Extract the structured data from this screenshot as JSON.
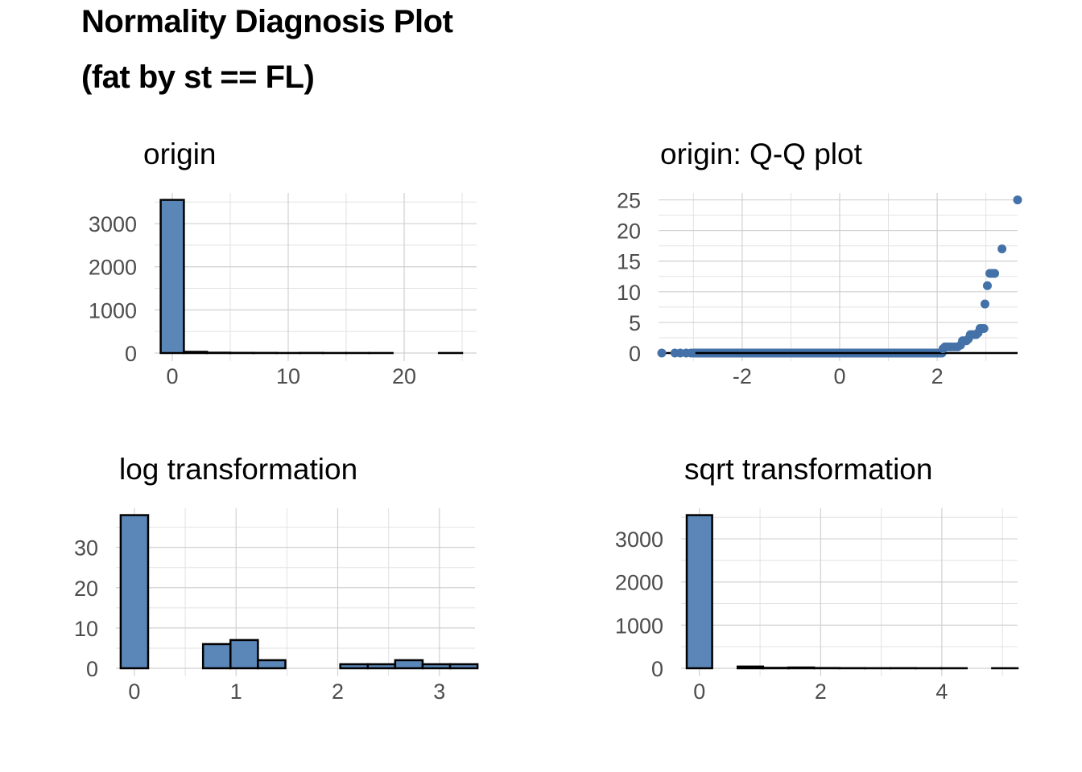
{
  "title": {
    "line1": "Normality Diagnosis Plot",
    "line2": "(fat by st == FL)"
  },
  "colors": {
    "bar_fill": "#5b86b8",
    "point": "#4472a8",
    "grid": "#d0d0d0",
    "tick_text": "#4d4d4d"
  },
  "chart_data": [
    {
      "type": "bar",
      "panel": "histogram",
      "title": "origin",
      "xlim": [
        -1.25,
        26.25
      ],
      "ylim": [
        0,
        3550
      ],
      "x_ticks": [
        0,
        10,
        20
      ],
      "y_ticks": [
        0,
        1000,
        2000,
        3000
      ],
      "bins": [
        {
          "x0": -1.0,
          "x1": 1.0,
          "count": 3550
        },
        {
          "x0": 1.0,
          "x1": 3.0,
          "count": 28
        },
        {
          "x0": 3.0,
          "x1": 5.0,
          "count": 8
        },
        {
          "x0": 5.0,
          "x1": 7.0,
          "count": 4
        },
        {
          "x0": 7.0,
          "x1": 9.0,
          "count": 3
        },
        {
          "x0": 9.0,
          "x1": 11.0,
          "count": 1
        },
        {
          "x0": 11.0,
          "x1": 13.0,
          "count": 3
        },
        {
          "x0": 13.0,
          "x1": 15.0,
          "count": 1
        },
        {
          "x0": 15.0,
          "x1": 17.0,
          "count": 1
        },
        {
          "x0": 17.0,
          "x1": 19.0,
          "count": 1
        },
        {
          "x0": 19.0,
          "x1": 21.0,
          "count": 0
        },
        {
          "x0": 21.0,
          "x1": 23.0,
          "count": 0
        },
        {
          "x0": 23.0,
          "x1": 25.0,
          "count": 1
        }
      ],
      "grid": true
    },
    {
      "type": "scatter",
      "panel": "qq",
      "title": "origin: Q-Q plot",
      "xlim": [
        -3.65,
        3.65
      ],
      "ylim": [
        0,
        25
      ],
      "x_ticks": [
        -2,
        0,
        2
      ],
      "y_ticks": [
        0,
        5,
        10,
        15,
        20,
        25
      ],
      "points": [
        [
          -3.65,
          0
        ],
        [
          -3.38,
          0
        ],
        [
          -3.27,
          0
        ],
        [
          -3.15,
          0
        ],
        [
          -3.05,
          0
        ],
        [
          2.12,
          0.7
        ],
        [
          2.16,
          1
        ],
        [
          2.2,
          1
        ],
        [
          2.25,
          1
        ],
        [
          2.3,
          1
        ],
        [
          2.36,
          1
        ],
        [
          2.42,
          1
        ],
        [
          2.48,
          1.3
        ],
        [
          2.52,
          2
        ],
        [
          2.56,
          2
        ],
        [
          2.6,
          2
        ],
        [
          2.64,
          2.3
        ],
        [
          2.68,
          3
        ],
        [
          2.72,
          3
        ],
        [
          2.76,
          3
        ],
        [
          2.8,
          3
        ],
        [
          2.84,
          3.3
        ],
        [
          2.88,
          4
        ],
        [
          2.92,
          4
        ],
        [
          2.96,
          4
        ],
        [
          2.98,
          8
        ],
        [
          3.03,
          11
        ],
        [
          3.08,
          13
        ],
        [
          3.13,
          13
        ],
        [
          3.18,
          13
        ],
        [
          3.33,
          17
        ],
        [
          3.65,
          25
        ]
      ],
      "zero_run": [
        -3.0,
        2.1
      ],
      "grid": true
    },
    {
      "type": "bar",
      "panel": "histogram",
      "title": "log transformation",
      "xlim": [
        -0.15,
        3.35
      ],
      "ylim": [
        0,
        38
      ],
      "x_ticks": [
        0,
        1,
        2,
        3
      ],
      "y_ticks": [
        0,
        10,
        20,
        30
      ],
      "bins": [
        {
          "x0": -0.135,
          "x1": 0.135,
          "count": 38
        },
        {
          "x0": 0.135,
          "x1": 0.405,
          "count": 0
        },
        {
          "x0": 0.405,
          "x1": 0.675,
          "count": 0
        },
        {
          "x0": 0.675,
          "x1": 0.945,
          "count": 6
        },
        {
          "x0": 0.945,
          "x1": 1.215,
          "count": 7
        },
        {
          "x0": 1.215,
          "x1": 1.485,
          "count": 2
        },
        {
          "x0": 1.485,
          "x1": 1.755,
          "count": 0
        },
        {
          "x0": 1.755,
          "x1": 2.025,
          "count": 0
        },
        {
          "x0": 2.025,
          "x1": 2.295,
          "count": 1
        },
        {
          "x0": 2.295,
          "x1": 2.565,
          "count": 1
        },
        {
          "x0": 2.565,
          "x1": 2.835,
          "count": 2
        },
        {
          "x0": 2.835,
          "x1": 3.105,
          "count": 1
        },
        {
          "x0": 3.105,
          "x1": 3.375,
          "count": 1
        }
      ],
      "grid": true
    },
    {
      "type": "bar",
      "panel": "histogram",
      "title": "sqrt transformation",
      "xlim": [
        -0.25,
        5.25
      ],
      "ylim": [
        0,
        3550
      ],
      "x_ticks": [
        0,
        2,
        4
      ],
      "y_ticks": [
        0,
        1000,
        2000,
        3000
      ],
      "bins": [
        {
          "x0": -0.21,
          "x1": 0.21,
          "count": 3550
        },
        {
          "x0": 0.21,
          "x1": 0.63,
          "count": 0
        },
        {
          "x0": 0.63,
          "x1": 1.05,
          "count": 40
        },
        {
          "x0": 1.05,
          "x1": 1.47,
          "count": 10
        },
        {
          "x0": 1.47,
          "x1": 1.89,
          "count": 18
        },
        {
          "x0": 1.89,
          "x1": 2.31,
          "count": 6
        },
        {
          "x0": 2.31,
          "x1": 2.73,
          "count": 3
        },
        {
          "x0": 2.73,
          "x1": 3.15,
          "count": 2
        },
        {
          "x0": 3.15,
          "x1": 3.57,
          "count": 3
        },
        {
          "x0": 3.57,
          "x1": 3.99,
          "count": 1
        },
        {
          "x0": 3.99,
          "x1": 4.41,
          "count": 1
        },
        {
          "x0": 4.41,
          "x1": 4.83,
          "count": 0
        },
        {
          "x0": 4.83,
          "x1": 5.25,
          "count": 1
        }
      ],
      "grid": true
    }
  ]
}
